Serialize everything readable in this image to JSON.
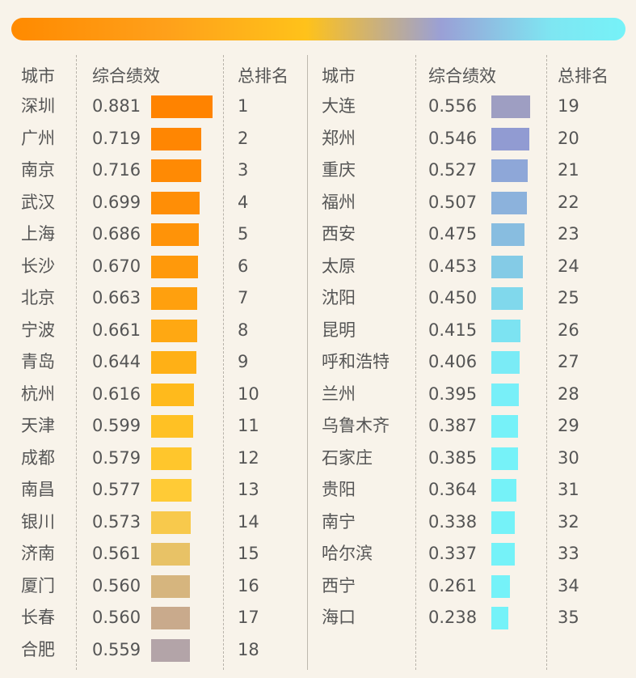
{
  "header": {
    "city": "城市",
    "score": "综合绩效",
    "rank": "总排名"
  },
  "rows": [
    {
      "city": "深圳",
      "score": "0.881",
      "rank": "1",
      "color": "#ff8300"
    },
    {
      "city": "广州",
      "score": "0.719",
      "rank": "2",
      "color": "#ff8602"
    },
    {
      "city": "南京",
      "score": "0.716",
      "rank": "3",
      "color": "#ff8a04"
    },
    {
      "city": "武汉",
      "score": "0.699",
      "rank": "4",
      "color": "#ff8e06"
    },
    {
      "city": "上海",
      "score": "0.686",
      "rank": "5",
      "color": "#ff9308"
    },
    {
      "city": "长沙",
      "score": "0.670",
      "rank": "6",
      "color": "#ff990b"
    },
    {
      "city": "北京",
      "score": "0.663",
      "rank": "7",
      "color": "#ffa00e"
    },
    {
      "city": "宁波",
      "score": "0.661",
      "rank": "8",
      "color": "#ffa812"
    },
    {
      "city": "青岛",
      "score": "0.644",
      "rank": "9",
      "color": "#ffb016"
    },
    {
      "city": "杭州",
      "score": "0.616",
      "rank": "10",
      "color": "#ffba1c"
    },
    {
      "city": "天津",
      "score": "0.599",
      "rank": "11",
      "color": "#ffc124"
    },
    {
      "city": "成都",
      "score": "0.579",
      "rank": "12",
      "color": "#ffc62c"
    },
    {
      "city": "南昌",
      "score": "0.577",
      "rank": "13",
      "color": "#ffcb36"
    },
    {
      "city": "银川",
      "score": "0.573",
      "rank": "14",
      "color": "#f8c94c"
    },
    {
      "city": "济南",
      "score": "0.561",
      "rank": "15",
      "color": "#e8c266"
    },
    {
      "city": "厦门",
      "score": "0.560",
      "rank": "16",
      "color": "#d6b57e"
    },
    {
      "city": "长春",
      "score": "0.560",
      "rank": "17",
      "color": "#c9aa8c"
    },
    {
      "city": "合肥",
      "score": "0.559",
      "rank": "18",
      "color": "#b3a4a8"
    },
    {
      "city": "大连",
      "score": "0.556",
      "rank": "19",
      "color": "#9e9ec2"
    },
    {
      "city": "郑州",
      "score": "0.546",
      "rank": "20",
      "color": "#919bd2"
    },
    {
      "city": "重庆",
      "score": "0.527",
      "rank": "21",
      "color": "#8ea7d8"
    },
    {
      "city": "福州",
      "score": "0.507",
      "rank": "22",
      "color": "#8cb2dc"
    },
    {
      "city": "西安",
      "score": "0.475",
      "rank": "23",
      "color": "#88bde0"
    },
    {
      "city": "太原",
      "score": "0.453",
      "rank": "24",
      "color": "#84cbe6"
    },
    {
      "city": "沈阳",
      "score": "0.450",
      "rank": "25",
      "color": "#80d8ec"
    },
    {
      "city": "昆明",
      "score": "0.415",
      "rank": "26",
      "color": "#7ce3f2"
    },
    {
      "city": "呼和浩特",
      "score": "0.406",
      "rank": "27",
      "color": "#7aebf6"
    },
    {
      "city": "兰州",
      "score": "0.395",
      "rank": "28",
      "color": "#78eff8"
    },
    {
      "city": "乌鲁木齐",
      "score": "0.387",
      "rank": "29",
      "color": "#76f1f8"
    },
    {
      "city": "石家庄",
      "score": "0.385",
      "rank": "30",
      "color": "#76f2f8"
    },
    {
      "city": "贵阳",
      "score": "0.364",
      "rank": "31",
      "color": "#75f2f8"
    },
    {
      "city": "南宁",
      "score": "0.338",
      "rank": "32",
      "color": "#75f2f8"
    },
    {
      "city": "哈尔滨",
      "score": "0.337",
      "rank": "33",
      "color": "#75f2f8"
    },
    {
      "city": "西宁",
      "score": "0.261",
      "rank": "34",
      "color": "#75f2f8"
    },
    {
      "city": "海口",
      "score": "0.238",
      "rank": "35",
      "color": "#75f2f8"
    }
  ],
  "chart_data": {
    "type": "table",
    "title": "",
    "columns": [
      "城市",
      "综合绩效",
      "总排名"
    ],
    "categories": [
      "深圳",
      "广州",
      "南京",
      "武汉",
      "上海",
      "长沙",
      "北京",
      "宁波",
      "青岛",
      "杭州",
      "天津",
      "成都",
      "南昌",
      "银川",
      "济南",
      "厦门",
      "长春",
      "合肥",
      "大连",
      "郑州",
      "重庆",
      "福州",
      "西安",
      "太原",
      "沈阳",
      "昆明",
      "呼和浩特",
      "兰州",
      "乌鲁木齐",
      "石家庄",
      "贵阳",
      "南宁",
      "哈尔滨",
      "西宁",
      "海口"
    ],
    "values": [
      0.881,
      0.719,
      0.716,
      0.699,
      0.686,
      0.67,
      0.663,
      0.661,
      0.644,
      0.616,
      0.599,
      0.579,
      0.577,
      0.573,
      0.561,
      0.56,
      0.56,
      0.559,
      0.556,
      0.546,
      0.527,
      0.507,
      0.475,
      0.453,
      0.45,
      0.415,
      0.406,
      0.395,
      0.387,
      0.385,
      0.364,
      0.338,
      0.337,
      0.261,
      0.238
    ],
    "ranks": [
      1,
      2,
      3,
      4,
      5,
      6,
      7,
      8,
      9,
      10,
      11,
      12,
      13,
      14,
      15,
      16,
      17,
      18,
      19,
      20,
      21,
      22,
      23,
      24,
      25,
      26,
      27,
      28,
      29,
      30,
      31,
      32,
      33,
      34,
      35
    ],
    "grid": false
  }
}
